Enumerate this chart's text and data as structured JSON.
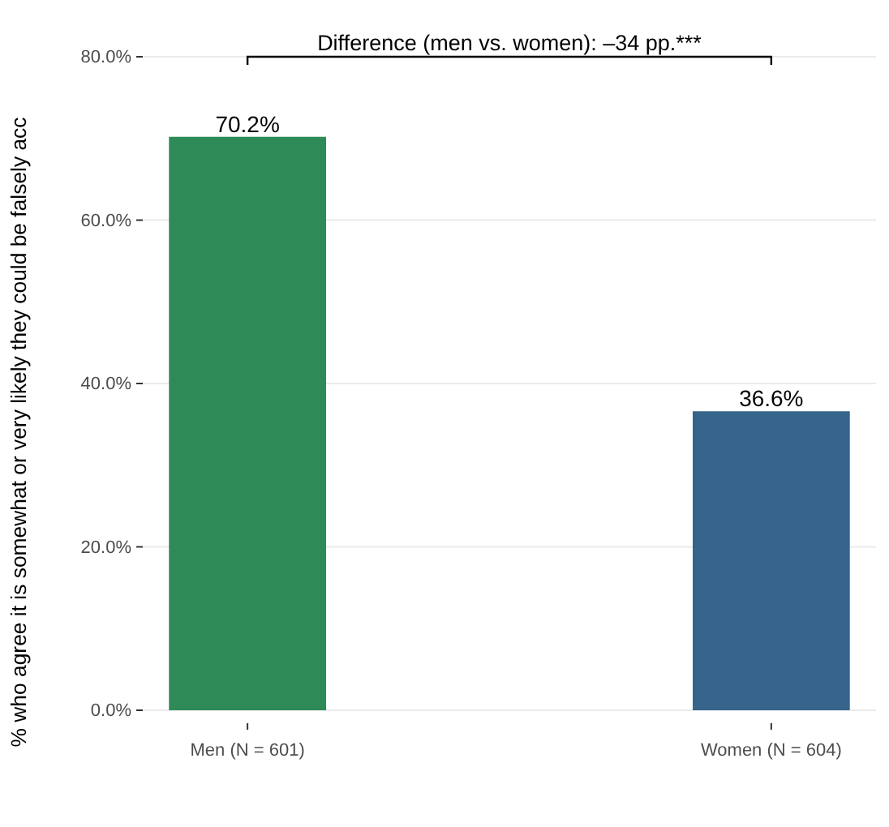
{
  "chart_data": {
    "type": "bar",
    "ylabel": "% who agree it is somewhat or very likely they could be falsely acc",
    "categories": [
      "Men (N = 601)",
      "Women (N = 604)"
    ],
    "values": [
      70.2,
      36.6
    ],
    "colors": [
      "#2e8b57",
      "#36648b"
    ],
    "value_labels": [
      "70.2%",
      "36.6%"
    ],
    "ylim": [
      0,
      80
    ],
    "yticks": [
      {
        "value": 0,
        "label": "0.0%"
      },
      {
        "value": 20,
        "label": "20.0%"
      },
      {
        "value": 40,
        "label": "40.0%"
      },
      {
        "value": 60,
        "label": "60.0%"
      },
      {
        "value": 80,
        "label": "80.0%"
      }
    ],
    "grid": "y",
    "annotations": [
      "Difference (men vs. women): –34 pp.***"
    ]
  }
}
